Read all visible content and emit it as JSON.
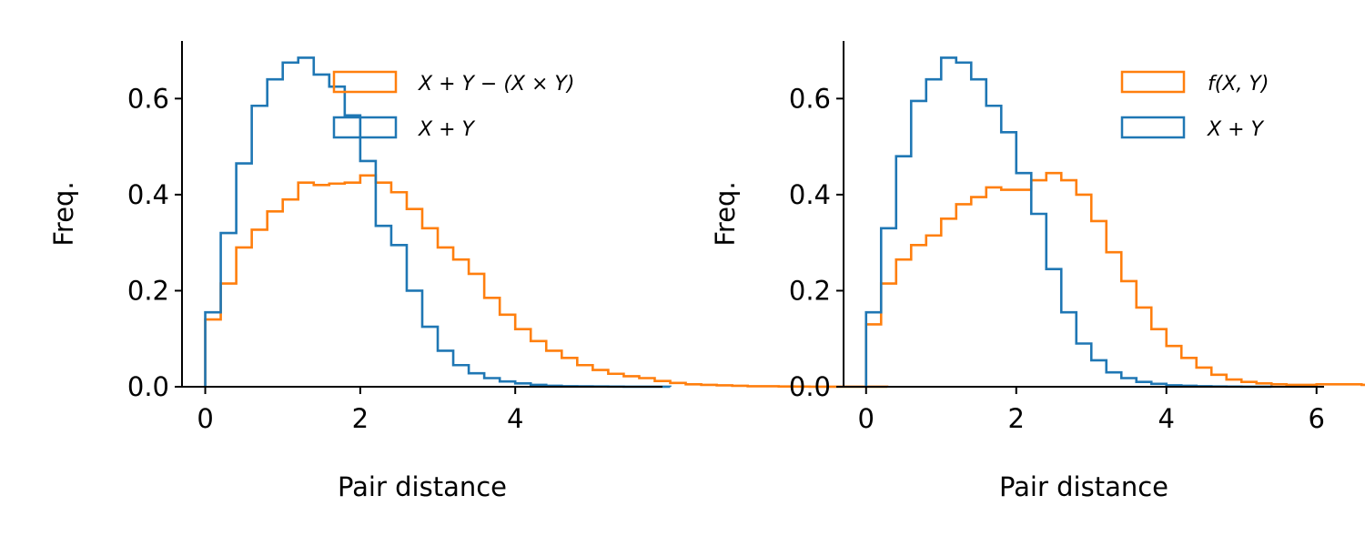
{
  "colors": {
    "orange": "#ff7f0e",
    "blue": "#1f77b4",
    "axis": "#000000"
  },
  "chart_data": [
    {
      "type": "histogram",
      "xlabel": "Pair distance",
      "ylabel": "Freq.",
      "xlim": [
        -0.3,
        5.9
      ],
      "ylim": [
        0,
        0.72
      ],
      "xticks": [
        "0",
        "2",
        "4"
      ],
      "yticks": [
        "0.0",
        "0.2",
        "0.4",
        "0.6"
      ],
      "grid": false,
      "legend_position": "top-right",
      "bin_width": 0.2,
      "series": [
        {
          "name": "X + Y − (X × Y)",
          "color": "#ff7f0e",
          "x_start": 0,
          "values": [
            0.14,
            0.215,
            0.29,
            0.327,
            0.365,
            0.39,
            0.425,
            0.42,
            0.423,
            0.425,
            0.44,
            0.425,
            0.405,
            0.37,
            0.33,
            0.29,
            0.265,
            0.235,
            0.185,
            0.15,
            0.12,
            0.095,
            0.075,
            0.06,
            0.045,
            0.035,
            0.027,
            0.022,
            0.018,
            0.012,
            0.008,
            0.005,
            0.004,
            0.003,
            0.002,
            0.001,
            0.001,
            0.0005,
            0.0003,
            0.0002,
            0.0001,
            0.0001,
            0.0001,
            0.0001
          ]
        },
        {
          "name": "X + Y",
          "color": "#1f77b4",
          "x_start": 0,
          "values": [
            0.155,
            0.32,
            0.465,
            0.585,
            0.64,
            0.675,
            0.685,
            0.65,
            0.625,
            0.565,
            0.47,
            0.335,
            0.295,
            0.2,
            0.125,
            0.075,
            0.045,
            0.028,
            0.018,
            0.011,
            0.007,
            0.004,
            0.002,
            0.001,
            0.0008,
            0.0005,
            0.0003,
            0.0002,
            0.0001,
            0.0001
          ]
        }
      ]
    },
    {
      "type": "histogram",
      "xlabel": "Pair distance",
      "ylabel": "Freq.",
      "xlim": [
        -0.3,
        6.1
      ],
      "ylim": [
        0,
        0.72
      ],
      "xticks": [
        "0",
        "2",
        "4",
        "6"
      ],
      "yticks": [
        "0.0",
        "0.2",
        "0.4",
        "0.6"
      ],
      "grid": false,
      "legend_position": "top-right",
      "bin_width": 0.2,
      "series": [
        {
          "name": "f(X, Y)",
          "color": "#ff7f0e",
          "x_start": 0,
          "values": [
            0.13,
            0.215,
            0.265,
            0.295,
            0.315,
            0.35,
            0.38,
            0.395,
            0.415,
            0.41,
            0.41,
            0.43,
            0.445,
            0.43,
            0.4,
            0.345,
            0.28,
            0.22,
            0.165,
            0.12,
            0.085,
            0.06,
            0.04,
            0.025,
            0.015,
            0.01,
            0.007,
            0.005,
            0.004,
            0.004,
            0.005,
            0.005,
            0.005,
            0.004,
            0.003,
            0.002,
            0.001,
            0.0005,
            0.0003,
            0.0002
          ]
        },
        {
          "name": "X + Y",
          "color": "#1f77b4",
          "x_start": 0,
          "values": [
            0.155,
            0.33,
            0.48,
            0.595,
            0.64,
            0.685,
            0.675,
            0.64,
            0.585,
            0.53,
            0.445,
            0.36,
            0.245,
            0.155,
            0.09,
            0.055,
            0.03,
            0.018,
            0.01,
            0.006,
            0.003,
            0.002,
            0.001,
            0.0005,
            0.0003,
            0.0002,
            0.0001
          ]
        }
      ]
    }
  ]
}
